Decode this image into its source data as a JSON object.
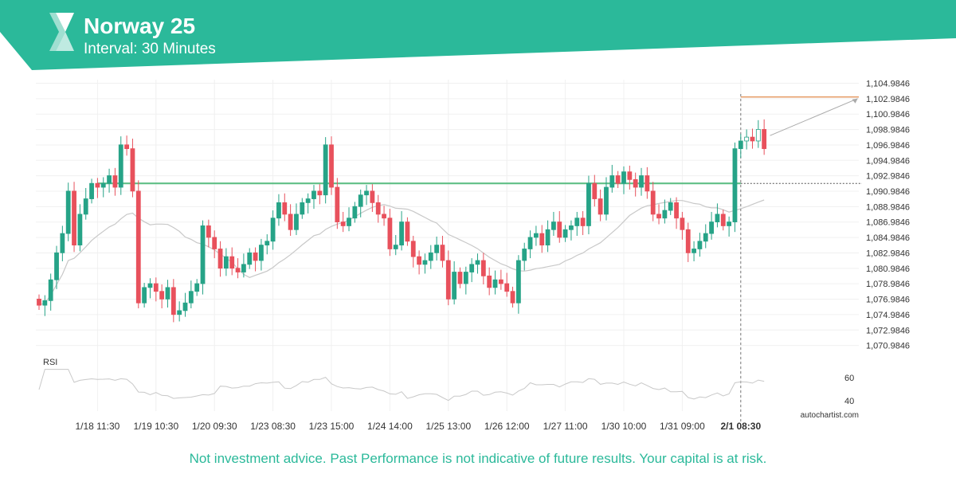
{
  "header": {
    "title": "Norway 25",
    "subtitle": "Interval: 30 Minutes"
  },
  "colors": {
    "brand": "#2bb99a",
    "bull": "#26a387",
    "bear": "#e8515c",
    "level_line": "#5fbf86",
    "target_line": "#e0894a",
    "ma_line": "#c8c8c8"
  },
  "footer": {
    "disclaimer": "Not investment advice. Past Performance is not indicative of future results. Your capital is at risk.",
    "watermark": "autochartist.com"
  },
  "chart_data": {
    "type": "candlestick",
    "title": "Norway 25",
    "subtitle": "Interval: 30 Minutes",
    "ylim": [
      1069.9846,
      1105.9846
    ],
    "y_ticks": [
      "1,104.9846",
      "1,102.9846",
      "1,100.9846",
      "1,098.9846",
      "1,096.9846",
      "1,094.9846",
      "1,092.9846",
      "1,090.9846",
      "1,088.9846",
      "1,086.9846",
      "1,084.9846",
      "1,082.9846",
      "1,080.9846",
      "1,078.9846",
      "1,076.9846",
      "1,074.9846",
      "1,072.9846",
      "1,070.9846"
    ],
    "x_ticks": [
      "1/18 11:30",
      "1/19 10:30",
      "1/20 09:30",
      "1/23 08:30",
      "1/23 15:00",
      "1/24 14:00",
      "1/25 13:00",
      "1/26 12:00",
      "1/27 11:00",
      "1/30 10:00",
      "1/31 09:00",
      "2/1 08:30"
    ],
    "x_tick_index": [
      10,
      20,
      30,
      40,
      50,
      60,
      70,
      80,
      90,
      100,
      110,
      120
    ],
    "highlight_x_tick": "2/1 08:30",
    "breakout_index": 120,
    "resistance_level": 1092.0,
    "resistance_start_index": 10,
    "target_level": 1103.2,
    "target_start_index": 120,
    "forecast_line": [
      [
        125,
        1098.2
      ],
      [
        140,
        1103.0
      ]
    ],
    "closes": [
      1076.2,
      1076.8,
      1079.5,
      1083.0,
      1085.5,
      1091.0,
      1084.0,
      1088.0,
      1090.0,
      1092.0,
      1091.5,
      1092.0,
      1093.0,
      1091.5,
      1097.0,
      1096.5,
      1091.0,
      1076.5,
      1078.5,
      1079.0,
      1078.0,
      1077.0,
      1078.5,
      1075.0,
      1075.5,
      1076.5,
      1078.0,
      1079.0,
      1086.5,
      1085.0,
      1083.5,
      1081.0,
      1082.5,
      1081.0,
      1080.5,
      1081.5,
      1083.0,
      1082.0,
      1084.0,
      1084.5,
      1087.5,
      1089.5,
      1088.0,
      1086.0,
      1088.0,
      1089.5,
      1090.0,
      1091.0,
      1090.5,
      1097.0,
      1091.5,
      1087.0,
      1086.5,
      1087.5,
      1089.0,
      1090.5,
      1091.0,
      1089.5,
      1088.0,
      1087.5,
      1083.5,
      1084.0,
      1087.0,
      1084.5,
      1082.5,
      1081.5,
      1082.0,
      1083.0,
      1084.0,
      1082.0,
      1077.0,
      1080.5,
      1079.0,
      1080.5,
      1081.5,
      1082.0,
      1080.0,
      1078.5,
      1079.5,
      1079.0,
      1078.0,
      1076.5,
      1082.0,
      1083.5,
      1085.0,
      1085.5,
      1084.0,
      1086.0,
      1087.0,
      1085.0,
      1086.0,
      1086.5,
      1087.5,
      1086.5,
      1092.0,
      1090.0,
      1088.0,
      1091.5,
      1093.0,
      1092.0,
      1093.5,
      1092.5,
      1091.5,
      1093.0,
      1091.0,
      1088.0,
      1087.5,
      1088.5,
      1089.5,
      1087.5,
      1086.0,
      1083.0,
      1083.5,
      1084.5,
      1085.5,
      1087.0,
      1088.0,
      1086.5,
      1087.0,
      1096.5,
      1097.5,
      1098.0,
      1097.5,
      1099.0,
      1096.5
    ]
  }
}
